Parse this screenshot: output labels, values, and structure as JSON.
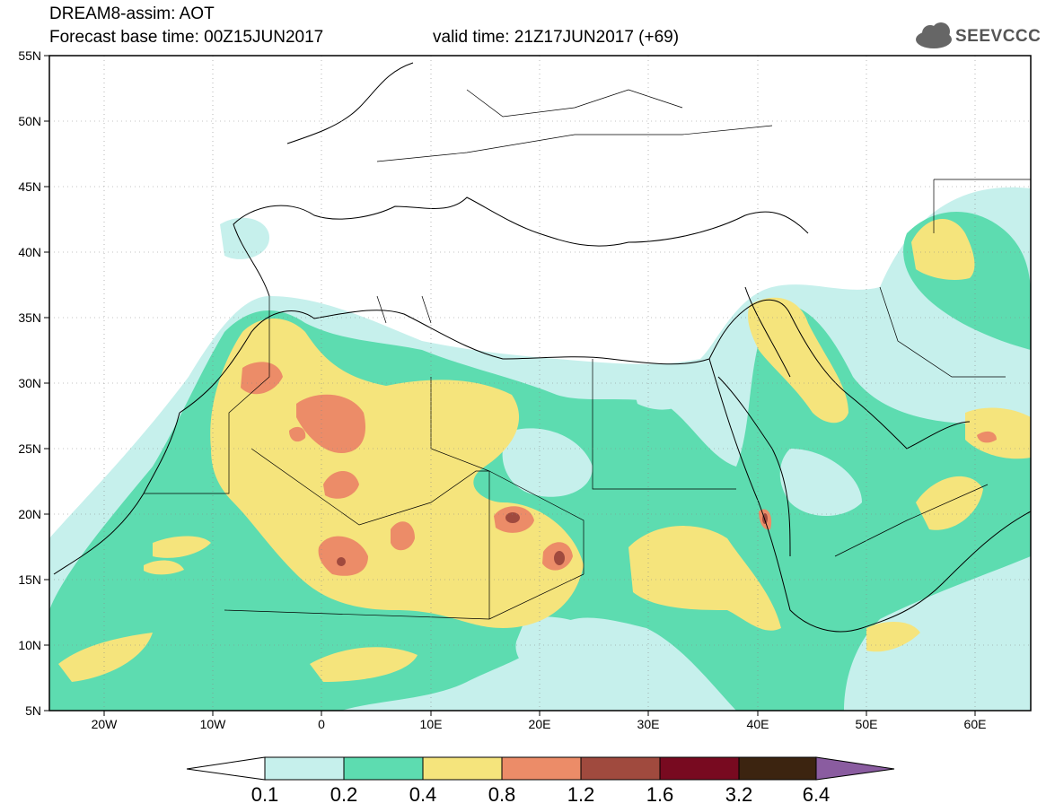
{
  "header": {
    "title": "DREAM8-assim: AOT",
    "base_time": "Forecast base time: 00Z15JUN2017",
    "valid_time": "valid time: 21Z17JUN2017 (+69)"
  },
  "logo": {
    "text": "SEEVCCC",
    "icon": "cloud-icon"
  },
  "map": {
    "lat_labels": [
      "55N",
      "50N",
      "45N",
      "40N",
      "35N",
      "30N",
      "25N",
      "20N",
      "15N",
      "10N",
      "5N"
    ],
    "lon_labels": [
      "20W",
      "10W",
      "0",
      "10E",
      "20E",
      "30E",
      "40E",
      "50E",
      "60E"
    ],
    "extent": {
      "lon_min": -25,
      "lon_max": 65,
      "lat_min": 5,
      "lat_max": 55
    }
  },
  "colorbar": {
    "labels": [
      "0.1",
      "0.2",
      "0.4",
      "0.8",
      "1.2",
      "1.6",
      "3.2",
      "6.4"
    ],
    "colors": [
      "#ffffff",
      "#c6f0ec",
      "#5ddcb0",
      "#f5e47c",
      "#ec8c68",
      "#a04a3e",
      "#780a20",
      "#3c2410",
      "#8a5ca0"
    ]
  }
}
